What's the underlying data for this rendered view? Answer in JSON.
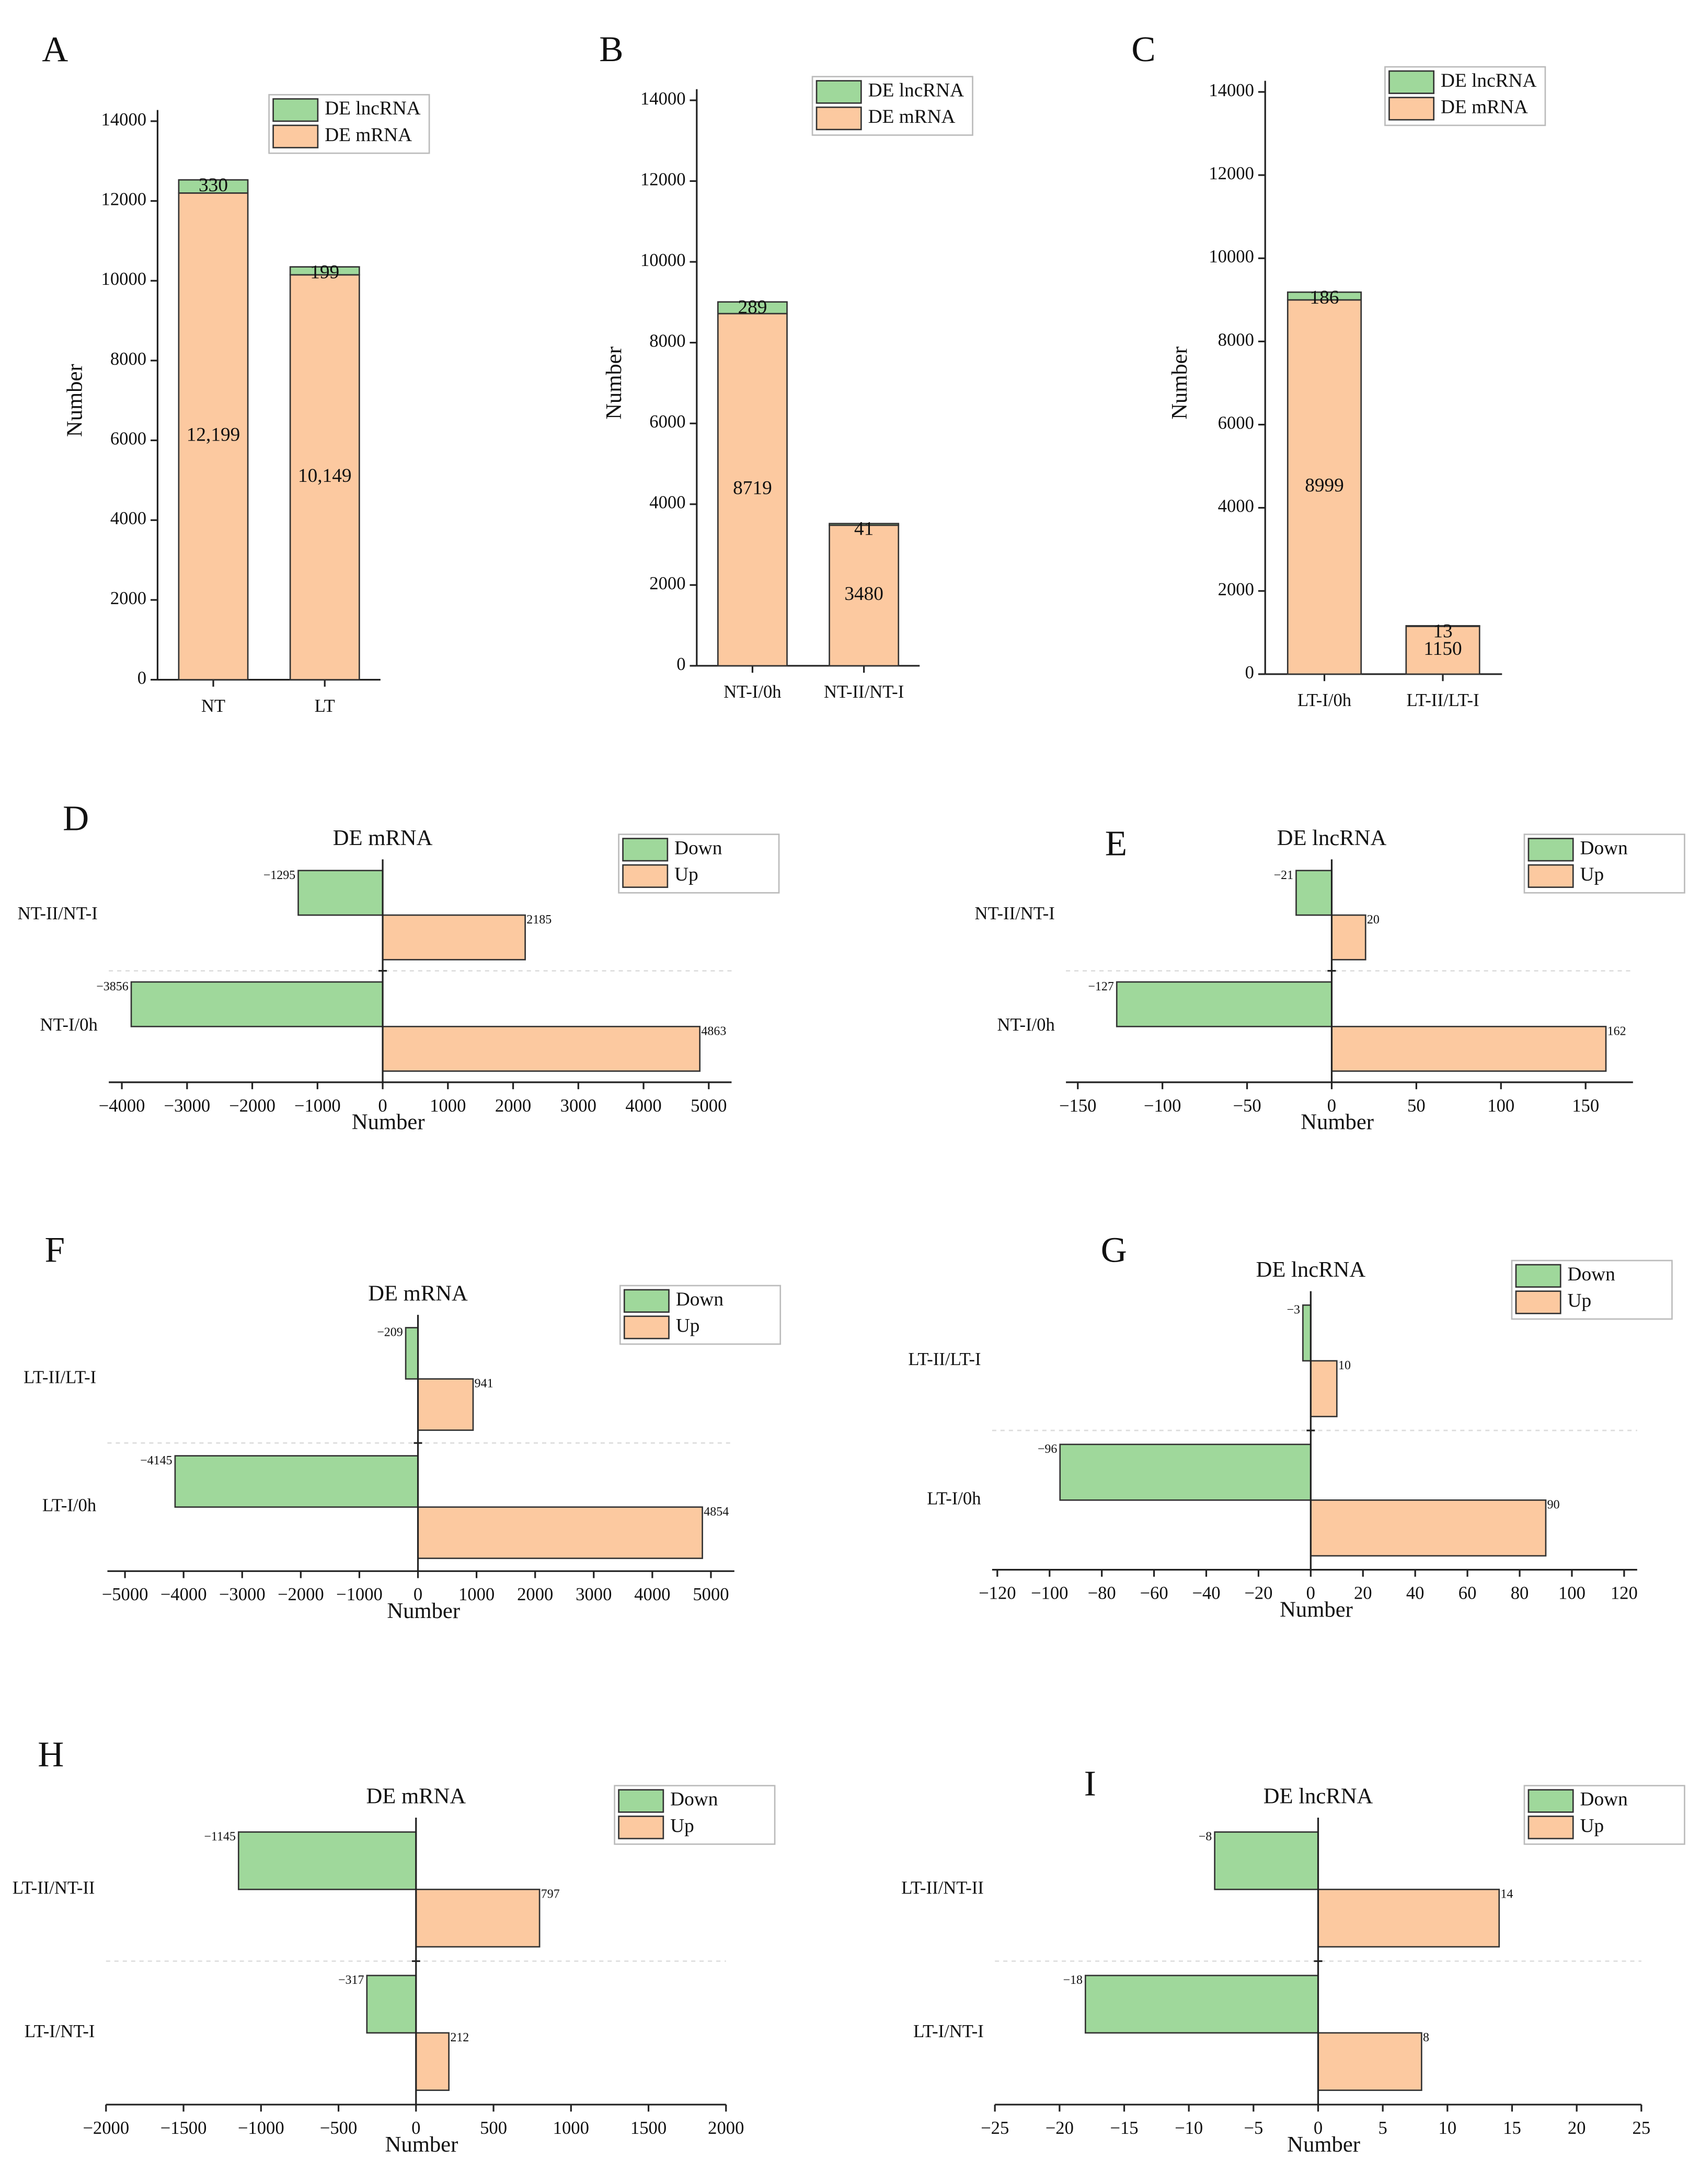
{
  "chart_data": [
    {
      "type": "bar",
      "panel": "A",
      "ylabel": "Number",
      "categories": [
        "NT",
        "LT"
      ],
      "series": [
        {
          "name": "DE mRNA",
          "color": "#fcc9a0",
          "values": [
            12199,
            10149
          ],
          "value_labels": [
            "12,199",
            "10,149"
          ]
        },
        {
          "name": "DE lncRNA",
          "color": "#9fd89b",
          "values": [
            330,
            199
          ]
        }
      ],
      "ylim": [
        0,
        14000
      ],
      "yticks": [
        0,
        2000,
        4000,
        6000,
        8000,
        10000,
        12000,
        14000
      ]
    },
    {
      "type": "bar",
      "panel": "B",
      "ylabel": "Number",
      "categories": [
        "NT-I/0h",
        "NT-II/NT-I"
      ],
      "series": [
        {
          "name": "DE mRNA",
          "color": "#fcc9a0",
          "values": [
            8719,
            3480
          ]
        },
        {
          "name": "DE lncRNA",
          "color": "#9fd89b",
          "values": [
            289,
            41
          ]
        }
      ],
      "ylim": [
        0,
        14000
      ],
      "yticks": [
        0,
        2000,
        4000,
        6000,
        8000,
        10000,
        12000,
        14000
      ]
    },
    {
      "type": "bar",
      "panel": "C",
      "ylabel": "Number",
      "categories": [
        "LT-I/0h",
        "LT-II/LT-I"
      ],
      "series": [
        {
          "name": "DE mRNA",
          "color": "#fcc9a0",
          "values": [
            8999,
            1150
          ]
        },
        {
          "name": "DE lncRNA",
          "color": "#9fd89b",
          "values": [
            186,
            13
          ]
        }
      ],
      "ylim": [
        0,
        14000
      ],
      "yticks": [
        0,
        2000,
        4000,
        6000,
        8000,
        10000,
        12000,
        14000
      ]
    },
    {
      "type": "barh",
      "panel": "D",
      "title": "DE mRNA",
      "xlabel": "Number",
      "categories": [
        "NT-I/0h",
        "NT-II/NT-I"
      ],
      "series": [
        {
          "name": "Down",
          "color": "#9fd89b",
          "values": [
            -3856,
            -1295
          ],
          "value_labels": [
            "−3856",
            "−1295"
          ]
        },
        {
          "name": "Up",
          "color": "#fcc9a0",
          "values": [
            4863,
            2185
          ]
        }
      ],
      "xlim": [
        -4200,
        5350
      ],
      "xticks": [
        {
          "value": -4000,
          "label": "−4000"
        },
        {
          "value": -3000,
          "label": "−3000"
        },
        {
          "value": -2000,
          "label": "−2000"
        },
        {
          "value": -1000,
          "label": "−1000"
        },
        0,
        1000,
        2000,
        3000,
        4000,
        5000
      ]
    },
    {
      "type": "barh",
      "panel": "E",
      "title": "DE lncRNA",
      "xlabel": "Number",
      "categories": [
        "NT-I/0h",
        "NT-II/NT-I"
      ],
      "series": [
        {
          "name": "Down",
          "color": "#9fd89b",
          "values": [
            -127,
            -21
          ],
          "value_labels": [
            "−127",
            "−21"
          ]
        },
        {
          "name": "Up",
          "color": "#fcc9a0",
          "values": [
            162,
            20
          ]
        }
      ],
      "xlim": [
        -157,
        178
      ],
      "xticks": [
        {
          "value": -150,
          "label": "−150"
        },
        {
          "value": -100,
          "label": "−100"
        },
        {
          "value": -50,
          "label": "−50"
        },
        0,
        50,
        100,
        150
      ]
    },
    {
      "type": "barh",
      "panel": "F",
      "title": "DE mRNA",
      "xlabel": "Number",
      "categories": [
        "LT-I/0h",
        "LT-II/LT-I"
      ],
      "series": [
        {
          "name": "Down",
          "color": "#9fd89b",
          "values": [
            -4145,
            -209
          ],
          "value_labels": [
            "−4145",
            "−209"
          ]
        },
        {
          "name": "Up",
          "color": "#fcc9a0",
          "values": [
            4854,
            941
          ]
        }
      ],
      "xlim": [
        -5300,
        5400
      ],
      "xticks": [
        {
          "value": -5000,
          "label": "−5000"
        },
        {
          "value": -4000,
          "label": "−4000"
        },
        {
          "value": -3000,
          "label": "−3000"
        },
        {
          "value": -2000,
          "label": "−2000"
        },
        {
          "value": -1000,
          "label": "−1000"
        },
        0,
        1000,
        2000,
        3000,
        4000,
        5000
      ]
    },
    {
      "type": "barh",
      "panel": "G",
      "title": "DE lncRNA",
      "xlabel": "Number",
      "categories": [
        "LT-I/0h",
        "LT-II/LT-I"
      ],
      "series": [
        {
          "name": "Down",
          "color": "#9fd89b",
          "values": [
            -96,
            -3
          ],
          "value_labels": [
            "−96",
            "−3"
          ]
        },
        {
          "name": "Up",
          "color": "#fcc9a0",
          "values": [
            90,
            10
          ]
        }
      ],
      "xlim": [
        -122,
        125
      ],
      "xticks": [
        {
          "value": -120,
          "label": "−120"
        },
        {
          "value": -100,
          "label": "−100"
        },
        {
          "value": -80,
          "label": "−80"
        },
        {
          "value": -60,
          "label": "−60"
        },
        {
          "value": -40,
          "label": "−40"
        },
        {
          "value": -20,
          "label": "−20"
        },
        0,
        20,
        40,
        60,
        80,
        100,
        120
      ]
    },
    {
      "type": "barh",
      "panel": "H",
      "title": "DE mRNA",
      "xlabel": "Number",
      "categories": [
        "LT-I/NT-I",
        "LT-II/NT-II"
      ],
      "series": [
        {
          "name": "Down",
          "color": "#9fd89b",
          "values": [
            -317,
            -1145
          ],
          "value_labels": [
            "−317",
            "−1145"
          ]
        },
        {
          "name": "Up",
          "color": "#fcc9a0",
          "values": [
            212,
            797
          ]
        }
      ],
      "xlim": [
        -2000,
        2000
      ],
      "xticks": [
        {
          "value": -2000,
          "label": "−2000"
        },
        {
          "value": -1500,
          "label": "−1500"
        },
        {
          "value": -1000,
          "label": "−1000"
        },
        {
          "value": -500,
          "label": "−500"
        },
        0,
        500,
        1000,
        1500,
        2000
      ]
    },
    {
      "type": "barh",
      "panel": "I",
      "title": "DE lncRNA",
      "xlabel": "Number",
      "categories": [
        "LT-I/NT-I",
        "LT-II/NT-II"
      ],
      "series": [
        {
          "name": "Down",
          "color": "#9fd89b",
          "values": [
            -18,
            -8
          ],
          "value_labels": [
            "−18",
            "−8"
          ]
        },
        {
          "name": "Up",
          "color": "#fcc9a0",
          "values": [
            8,
            14
          ]
        }
      ],
      "xlim": [
        -25,
        25
      ],
      "xticks": [
        {
          "value": -25,
          "label": "−25"
        },
        {
          "value": -20,
          "label": "−20"
        },
        {
          "value": -15,
          "label": "−15"
        },
        {
          "value": -10,
          "label": "−10"
        },
        {
          "value": -5,
          "label": "−5"
        },
        0,
        5,
        10,
        15,
        20,
        25
      ]
    }
  ]
}
